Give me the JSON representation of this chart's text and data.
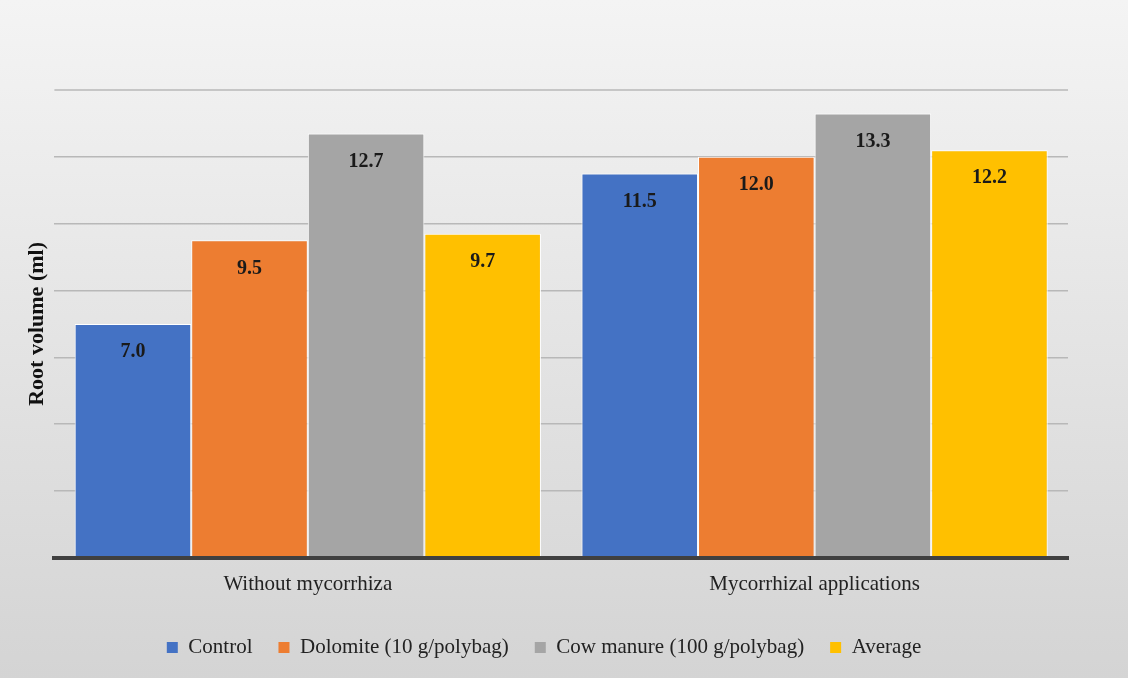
{
  "chart_data": {
    "type": "bar",
    "ylabel": "Root volume (ml)",
    "categories": [
      "Without mycorrhiza",
      "Mycorrhizal applications"
    ],
    "series": [
      {
        "name": "Control",
        "color": "#4472c4",
        "values": [
          7.0,
          11.5
        ],
        "value_labels": [
          "7.0",
          "11.5"
        ]
      },
      {
        "name": "Dolomite (10 g/polybag)",
        "color": "#ed7d31",
        "values": [
          9.5,
          12.0
        ],
        "value_labels": [
          "9.5",
          "12.0"
        ]
      },
      {
        "name": "Cow manure (100 g/polybag)",
        "color": "#a5a5a5",
        "values": [
          12.7,
          13.3
        ],
        "value_labels": [
          "12.7",
          "13.3"
        ]
      },
      {
        "name": "Average",
        "color": "#ffc000",
        "values": [
          9.7,
          12.2
        ],
        "value_labels": [
          "9.7",
          "12.2"
        ]
      }
    ],
    "ylim": [
      0,
      14
    ],
    "yticks": [
      {
        "value": 2,
        "label": null
      },
      {
        "value": 4,
        "label": null
      },
      {
        "value": 6,
        "label": null
      },
      {
        "value": 8,
        "label": null
      },
      {
        "value": 10,
        "label": null
      },
      {
        "value": 12,
        "label": null
      }
    ],
    "grid": "y",
    "tick_labels": "x",
    "legend": "bottom"
  }
}
